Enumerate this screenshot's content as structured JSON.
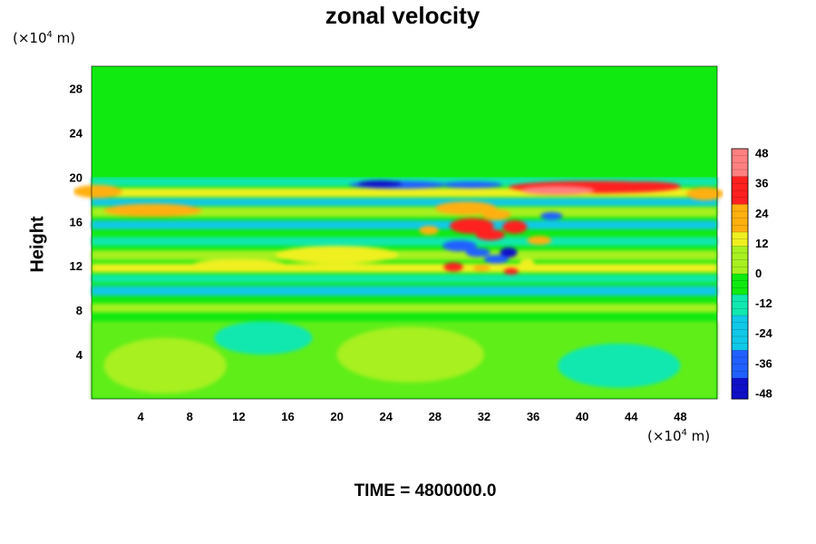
{
  "chart_data": {
    "type": "heatmap",
    "title": "zonal velocity",
    "ylabel": "Height",
    "x_unit": "(×10",
    "x_unit_exp": "4",
    "x_unit_tail": " m)",
    "y_unit": "(×10",
    "y_unit_exp": "4",
    "y_unit_tail": " m)",
    "xlim": [
      0,
      51
    ],
    "ylim": [
      0,
      30
    ],
    "x_ticks": [
      "4",
      "8",
      "12",
      "16",
      "20",
      "24",
      "28",
      "32",
      "36",
      "40",
      "44",
      "48"
    ],
    "y_ticks": [
      "4",
      "8",
      "12",
      "16",
      "20",
      "24",
      "28"
    ],
    "colorbar": {
      "min": -50,
      "max": 50,
      "tick_labels": [
        "48",
        "36",
        "24",
        "12",
        "0",
        "-12",
        "-24",
        "-36",
        "-48"
      ]
    },
    "footer": "TIME = 4800000.0"
  }
}
